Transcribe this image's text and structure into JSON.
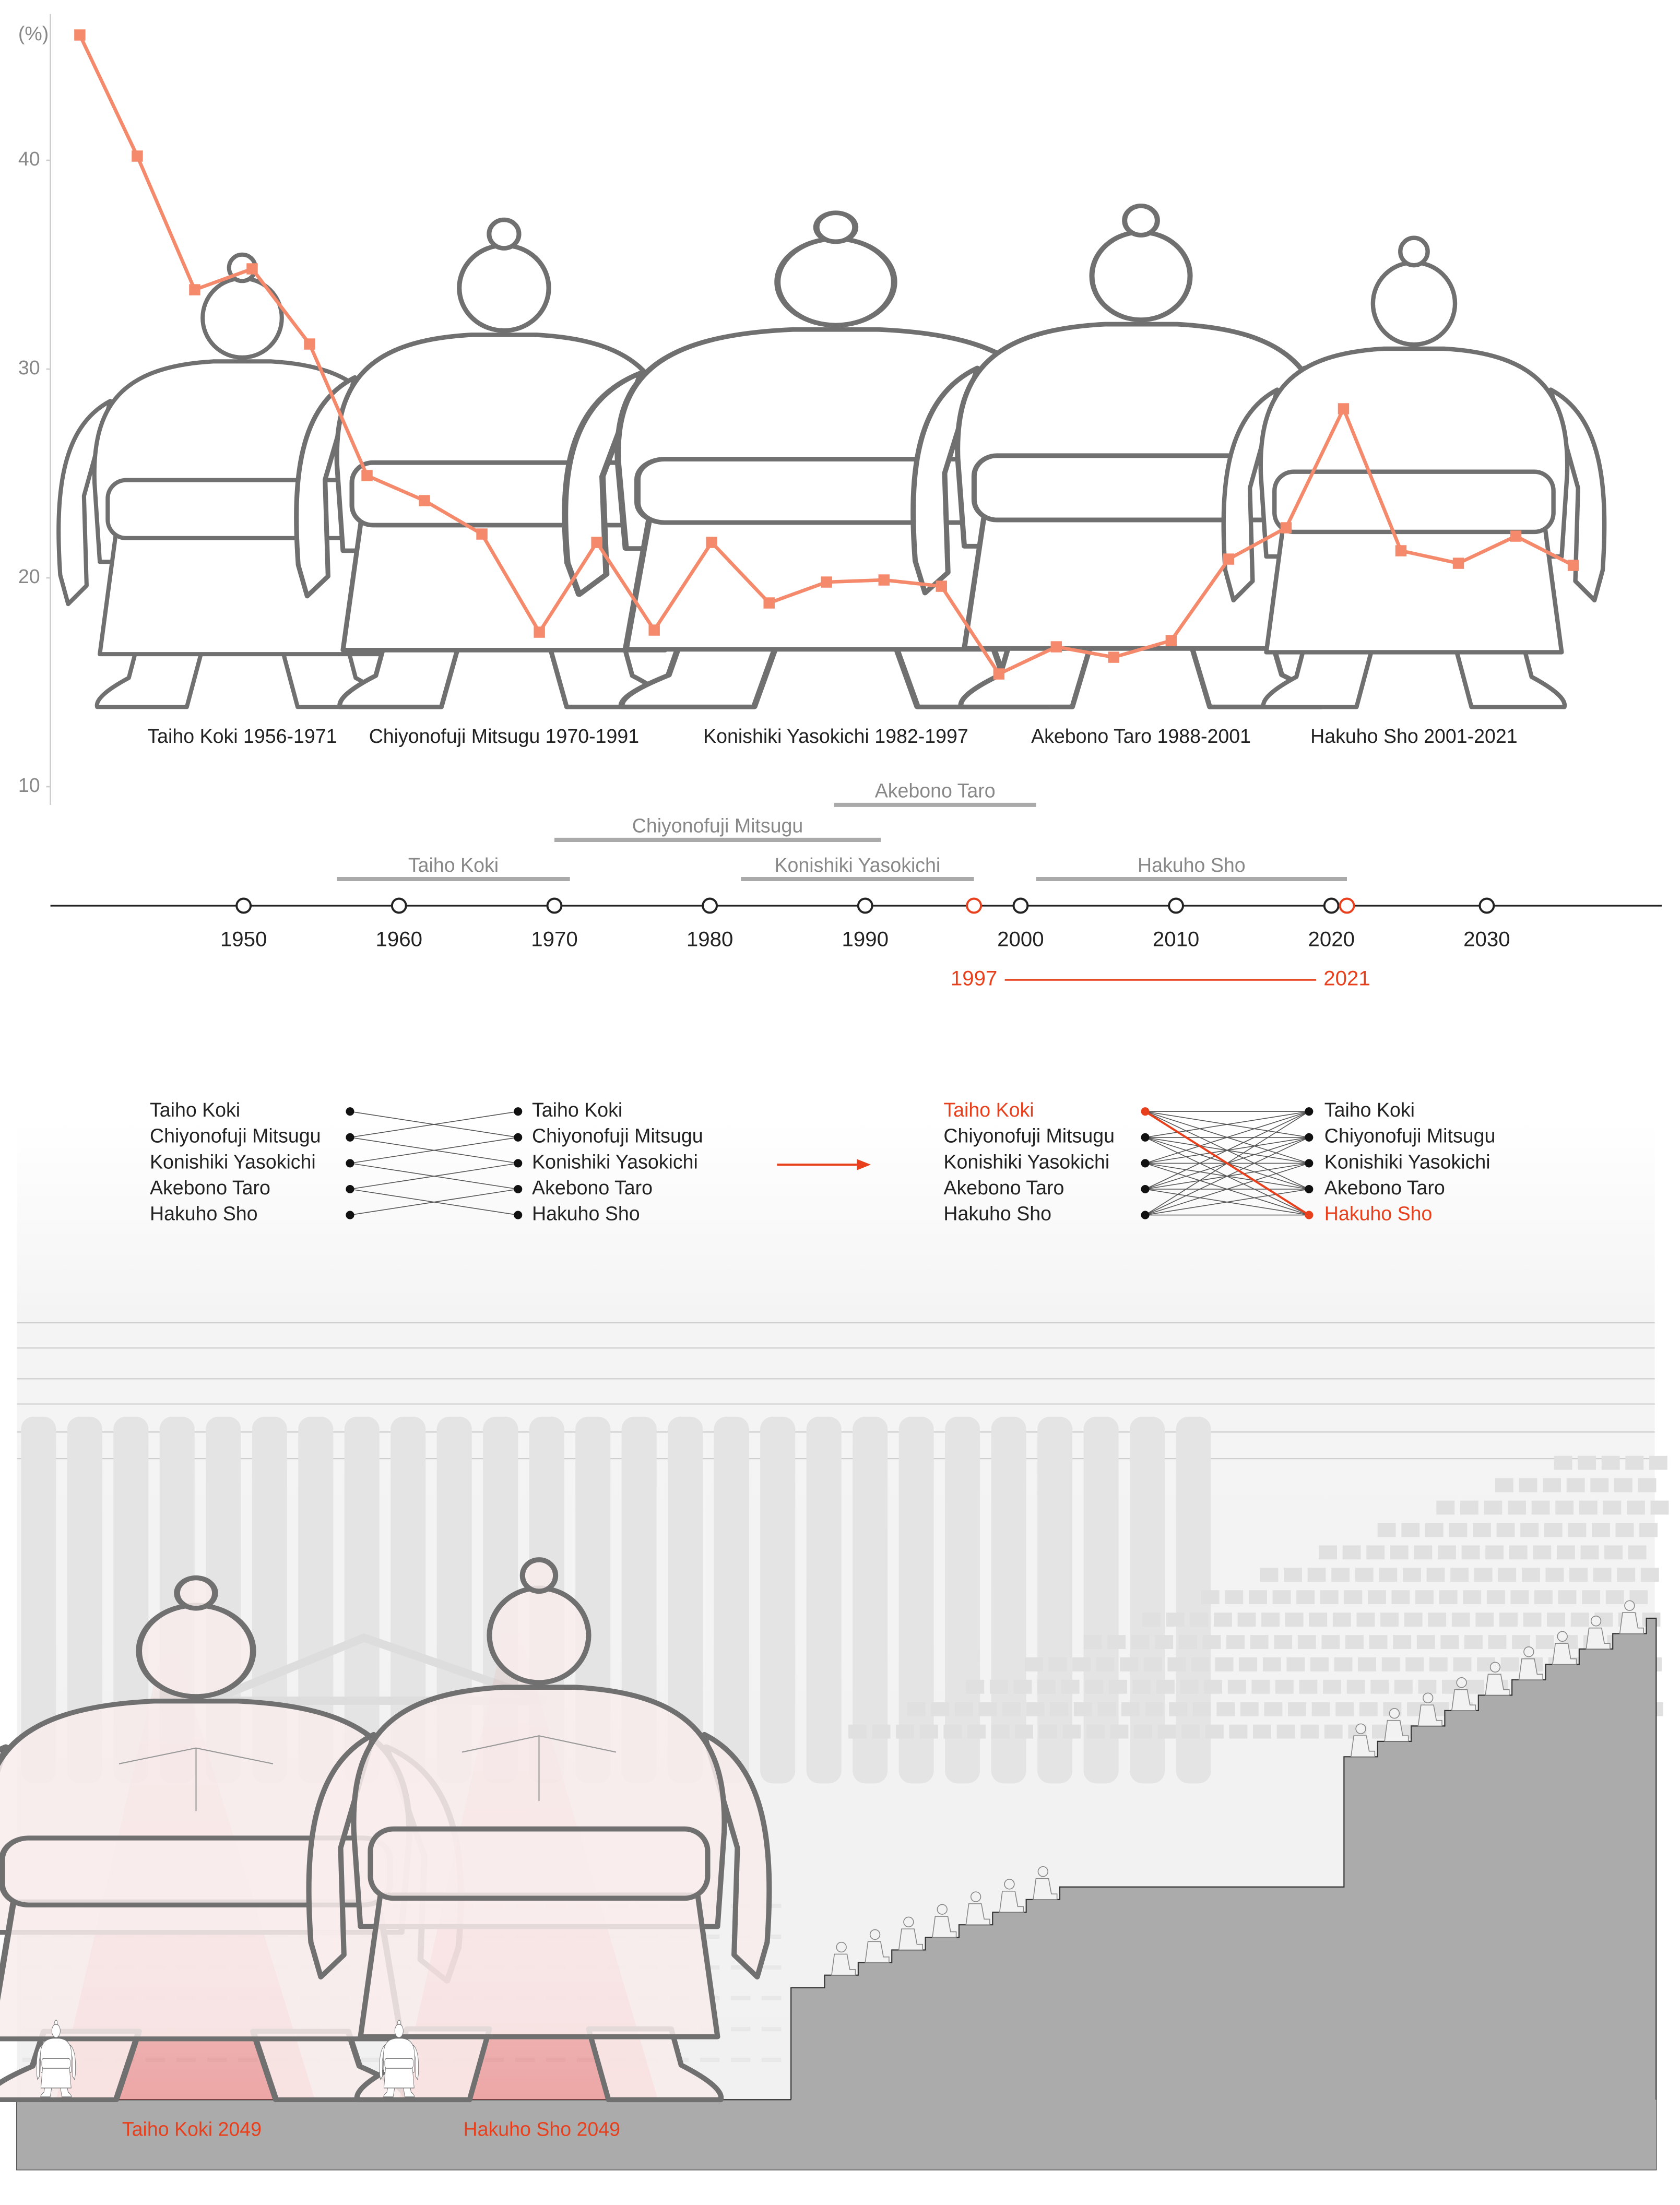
{
  "chart_data": {
    "type": "line",
    "y_label": "(%)",
    "categories": [
      null,
      null,
      null,
      null,
      null,
      null,
      null,
      null,
      null,
      null,
      null,
      null,
      null,
      null,
      null,
      null,
      null,
      null,
      null,
      null,
      null,
      null,
      null,
      null,
      null,
      null,
      null
    ],
    "values": [
      46.0,
      40.2,
      33.8,
      34.8,
      31.2,
      24.9,
      23.7,
      22.1,
      17.4,
      21.7,
      17.5,
      21.7,
      18.8,
      19.8,
      19.9,
      19.6,
      15.4,
      16.7,
      16.2,
      17.0,
      20.9,
      22.4,
      28.1,
      21.3,
      20.7,
      22.0,
      20.6
    ],
    "color": "#f4896b",
    "ylim": [
      10,
      46
    ],
    "yticks": [
      10,
      20,
      30,
      40
    ]
  },
  "figures": [
    "Taiho Koki 1956-1971",
    "Chiyonofuji Mitsugu 1970-1991",
    "Konishiki Yasokichi 1982-1997",
    "Akebono Taro 1988-2001",
    "Hakuho Sho 2001-2021"
  ],
  "timeline": {
    "years": [
      1950,
      1960,
      1970,
      1980,
      1990,
      2000,
      2010,
      2020,
      2030
    ],
    "highlight_years": [
      1997,
      2021
    ],
    "careers": [
      {
        "name": "Taiho Koki",
        "start": 1956,
        "end": 1971
      },
      {
        "name": "Chiyonofuji Mitsugu",
        "start": 1970,
        "end": 1991
      },
      {
        "name": "Konishiki Yasokichi",
        "start": 1982,
        "end": 1997
      },
      {
        "name": "Akebono Taro",
        "start": 1988,
        "end": 2001
      },
      {
        "name": "Hakuho Sho",
        "start": 2001,
        "end": 2021
      }
    ]
  },
  "diagram_left": {
    "from": [
      "Taiho Koki",
      "Chiyonofuji Mitsugu",
      "Konishiki Yasokichi",
      "Akebono Taro",
      "Hakuho Sho"
    ],
    "to": [
      "Taiho Koki",
      "Chiyonofuji Mitsugu",
      "Konishiki Yasokichi",
      "Akebono Taro",
      "Hakuho Sho"
    ]
  },
  "diagram_right": {
    "from": [
      "Taiho Koki",
      "Chiyonofuji Mitsugu",
      "Konishiki Yasokichi",
      "Akebono Taro",
      "Hakuho Sho"
    ],
    "to": [
      "Taiho Koki",
      "Chiyonofuji Mitsugu",
      "Konishiki Yasokichi",
      "Akebono Taro",
      "Hakuho Sho"
    ]
  },
  "future": [
    "Taiho Koki 2049",
    "Hakuho Sho 2049"
  ]
}
